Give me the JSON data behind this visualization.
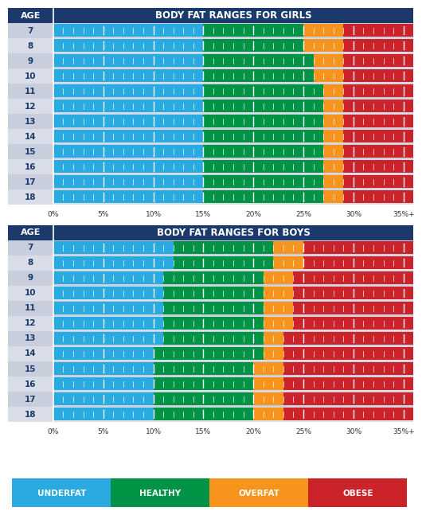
{
  "title_girls": "BODY FAT RANGES FOR GIRLS",
  "title_boys": "BODY FAT RANGES FOR BOYS",
  "ages": [
    7,
    8,
    9,
    10,
    11,
    12,
    13,
    14,
    15,
    16,
    17,
    18
  ],
  "colors": {
    "underfat": "#29ABE2",
    "healthy": "#009245",
    "overfat": "#F7941D",
    "obese": "#CC2229",
    "header_bg": "#1B3A6B",
    "header_text": "#FFFFFF",
    "row_bg_even": "#C8CEDC",
    "row_bg_odd": "#D8DDE8",
    "axis_label": "#333333"
  },
  "girls_data": {
    "underfat_end": [
      15,
      15,
      15,
      15,
      15,
      15,
      15,
      15,
      15,
      15,
      15,
      15
    ],
    "healthy_end": [
      25,
      25,
      26,
      26,
      27,
      27,
      27,
      27,
      27,
      27,
      27,
      27
    ],
    "overfat_end": [
      29,
      29,
      29,
      29,
      29,
      29,
      29,
      29,
      29,
      29,
      29,
      29
    ],
    "obese_end": [
      36,
      36,
      36,
      36,
      36,
      36,
      36,
      36,
      36,
      36,
      36,
      36
    ]
  },
  "boys_data": {
    "underfat_end": [
      12,
      12,
      11,
      11,
      11,
      11,
      11,
      10,
      10,
      10,
      10,
      10
    ],
    "healthy_end": [
      22,
      22,
      21,
      21,
      21,
      21,
      21,
      21,
      20,
      20,
      20,
      20
    ],
    "overfat_end": [
      25,
      25,
      24,
      24,
      24,
      24,
      23,
      23,
      23,
      23,
      23,
      23
    ],
    "obese_end": [
      36,
      36,
      36,
      36,
      36,
      36,
      36,
      36,
      36,
      36,
      36,
      36
    ]
  },
  "xmax": 36,
  "xticks": [
    0,
    5,
    10,
    15,
    20,
    25,
    30,
    35
  ],
  "xtick_labels": [
    "0%",
    "5%",
    "10%",
    "15%",
    "20%",
    "25%",
    "30%",
    "35%+"
  ],
  "legend_labels": [
    "UNDERFAT",
    "HEALTHY",
    "OVERFAT",
    "OBESE"
  ],
  "legend_colors": [
    "#29ABE2",
    "#009245",
    "#F7941D",
    "#CC2229"
  ]
}
